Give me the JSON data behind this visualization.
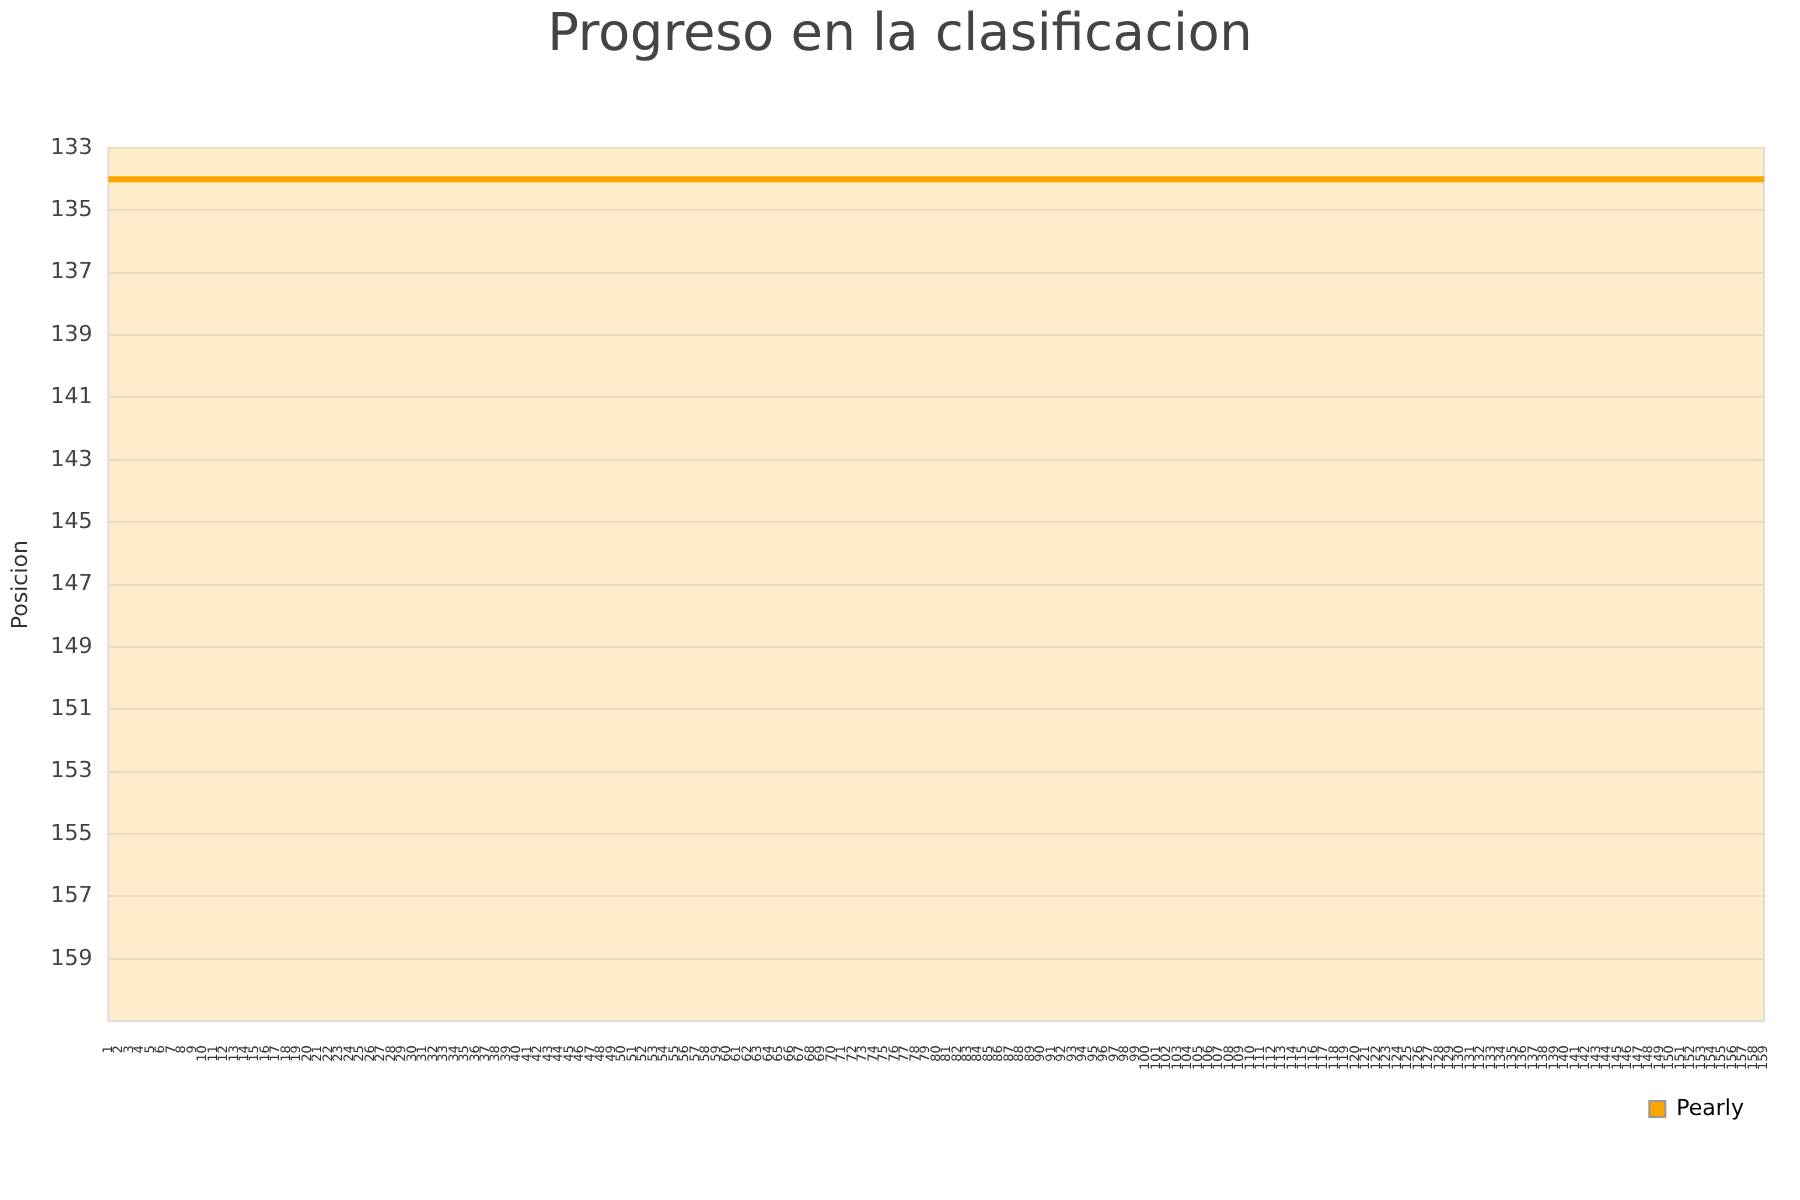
{
  "chart_data": {
    "type": "line",
    "title": "Progreso en la clasificacion",
    "ylabel": "Posicion",
    "categories": [
      "1",
      "2",
      "3",
      "4",
      "5",
      "6",
      "7",
      "8",
      "9",
      "10",
      "11",
      "12",
      "13",
      "14",
      "15",
      "16",
      "17",
      "18",
      "19",
      "20",
      "21",
      "22",
      "23",
      "24",
      "25",
      "26",
      "27",
      "28",
      "29",
      "30",
      "31",
      "32",
      "33",
      "34",
      "35",
      "36",
      "37",
      "38",
      "39",
      "40",
      "41",
      "42",
      "43",
      "44",
      "45",
      "46",
      "47",
      "48",
      "49",
      "50",
      "51",
      "52",
      "53",
      "54",
      "55",
      "56",
      "57",
      "58",
      "59",
      "60",
      "61",
      "62",
      "63",
      "64",
      "65",
      "66",
      "67",
      "68",
      "69",
      "70",
      "71",
      "72",
      "73",
      "74",
      "75",
      "76",
      "77",
      "78",
      "79",
      "80",
      "81",
      "82",
      "83",
      "84",
      "85",
      "86",
      "87",
      "88",
      "89",
      "90",
      "91",
      "92",
      "93",
      "94",
      "95",
      "96",
      "97",
      "98",
      "99",
      "100",
      "101",
      "102",
      "103",
      "104",
      "105",
      "106",
      "107",
      "108",
      "109",
      "110",
      "111",
      "112",
      "113",
      "114",
      "115",
      "116",
      "117",
      "118",
      "119",
      "120",
      "121",
      "122",
      "123",
      "124",
      "125",
      "126",
      "127",
      "128",
      "129",
      "130",
      "131",
      "132",
      "133",
      "134",
      "135",
      "136",
      "137",
      "138",
      "139",
      "140",
      "141",
      "142",
      "143",
      "144",
      "145",
      "146",
      "147",
      "148",
      "149",
      "150",
      "151",
      "152",
      "153",
      "154",
      "155",
      "156",
      "157",
      "158",
      "159"
    ],
    "series": [
      {
        "name": "Pearly",
        "color": "#ffa500",
        "values": [
          134,
          134,
          134,
          134,
          134,
          134,
          134,
          134,
          134,
          134,
          134,
          134,
          134,
          134,
          134,
          134,
          134,
          134,
          134,
          134,
          134,
          134,
          134,
          134,
          134,
          134,
          134,
          134,
          134,
          134,
          134,
          134,
          134,
          134,
          134,
          134,
          134,
          134,
          134,
          134,
          134,
          134,
          134,
          134,
          134,
          134,
          134,
          134,
          134,
          134,
          134,
          134,
          134,
          134,
          134,
          134,
          134,
          134,
          134,
          134,
          134,
          134,
          134,
          134,
          134,
          134,
          134,
          134,
          134,
          134,
          134,
          134,
          134,
          134,
          134,
          134,
          134,
          134,
          134,
          134,
          134,
          134,
          134,
          134,
          134,
          134,
          134,
          134,
          134,
          134,
          134,
          134,
          134,
          134,
          134,
          134,
          134,
          134,
          134,
          134,
          134,
          134,
          134,
          134,
          134,
          134,
          134,
          134,
          134,
          134,
          134,
          134,
          134,
          134,
          134,
          134,
          134,
          134,
          134,
          134,
          134,
          134,
          134,
          134,
          134,
          134,
          134,
          134,
          134,
          134,
          134,
          134,
          134,
          134,
          134,
          134,
          134,
          134,
          134,
          134,
          134,
          134,
          134,
          134,
          134,
          134,
          134,
          134,
          134,
          134,
          134,
          134,
          134,
          134,
          134,
          134,
          134,
          134,
          134
        ]
      }
    ],
    "ylim": [
      161,
      133
    ],
    "yticks": [
      133,
      135,
      137,
      139,
      141,
      143,
      145,
      147,
      149,
      151,
      153,
      155,
      157,
      159
    ],
    "grid": "y",
    "legend": "bottom right",
    "marker": "none",
    "line_style": "solid"
  }
}
